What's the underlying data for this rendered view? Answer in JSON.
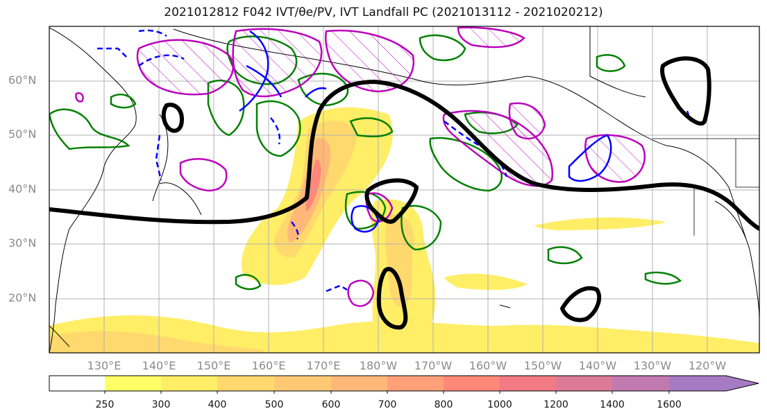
{
  "title": "2021012812 F042 IVT/θe/PV, IVT Landfall PC (2021013112 - 2021020212)",
  "lat_labels": [
    "60°N",
    "50°N",
    "40°N",
    "30°N",
    "20°N"
  ],
  "lon_labels": [
    "130°E",
    "140°E",
    "150°E",
    "160°E",
    "170°E",
    "180°W",
    "170°W",
    "160°W",
    "150°W",
    "140°W",
    "130°W",
    "120°W"
  ],
  "colorbar": {
    "ticks": [
      "250",
      "300",
      "400",
      "500",
      "600",
      "700",
      "800",
      "1000",
      "1200",
      "1400",
      "1600"
    ],
    "colors": [
      "#ffff66",
      "#ffee66",
      "#ffd86e",
      "#ffc873",
      "#ffb878",
      "#ffa078",
      "#ff8878",
      "#f27a84",
      "#dd7a98",
      "#c07ab0",
      "#a77bc4"
    ],
    "extend": "max"
  },
  "legend_colors": {
    "ivt_pc": "#000000",
    "pv_positive": "#bb00bb",
    "theta_e": "#008000",
    "negative": "#0000ff"
  }
}
